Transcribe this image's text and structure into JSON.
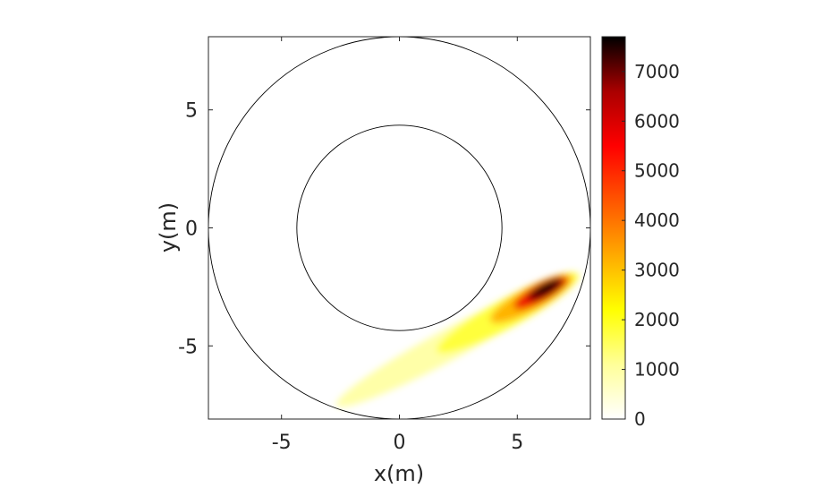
{
  "chart_data": {
    "type": "heatmap",
    "xlabel": "x(m)",
    "ylabel": "y(m)",
    "xlim": [
      -8.1,
      8.1
    ],
    "ylim": [
      -8.1,
      8.1
    ],
    "xticks": [
      -5,
      0,
      5
    ],
    "xtick_labels": [
      "-5",
      "0",
      "5"
    ],
    "yticks": [
      5,
      0,
      -5
    ],
    "ytick_labels": [
      "5",
      "0",
      "-5"
    ],
    "grid": false,
    "circles": [
      {
        "name": "outer-boundary",
        "cx": 0,
        "cy": 0,
        "r": 8.1
      },
      {
        "name": "inner-boundary",
        "cx": 0,
        "cy": 0,
        "r": 4.35
      }
    ],
    "hotspot": {
      "x": 6.1,
      "y": -2.7,
      "peak": 7700
    },
    "colorbar": {
      "colormap": "hot-reversed",
      "range": [
        0,
        7700
      ],
      "ticks": [
        0,
        1000,
        2000,
        3000,
        4000,
        5000,
        6000,
        7000
      ],
      "tick_labels": [
        "0",
        "1000",
        "2000",
        "3000",
        "4000",
        "5000",
        "6000",
        "7000"
      ],
      "stops": [
        "#ffffff",
        "#ffff99",
        "#ffff00",
        "#ffaa00",
        "#ff5500",
        "#ff0000",
        "#aa0000",
        "#000000"
      ]
    }
  }
}
